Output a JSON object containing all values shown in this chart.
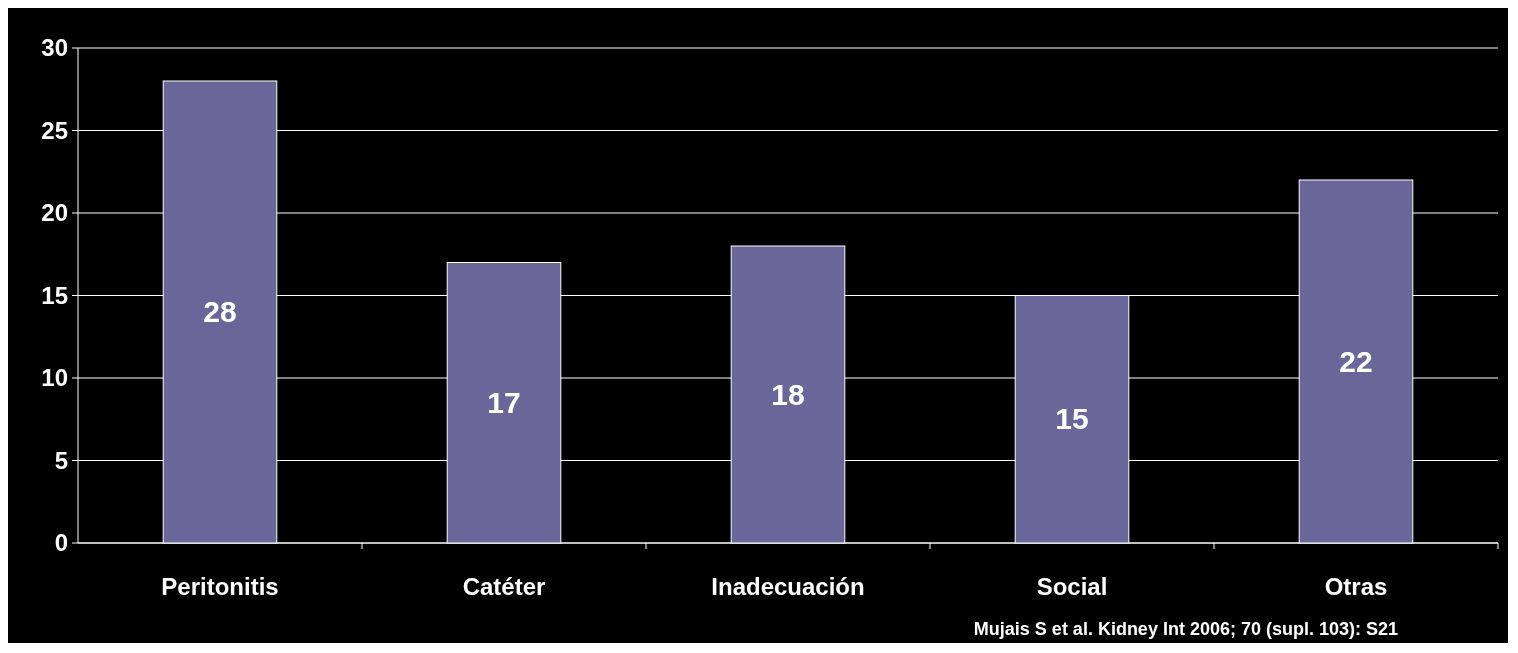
{
  "chart_data": {
    "type": "bar",
    "categories": [
      "Peritonitis",
      "Catéter",
      "Inadecuación",
      "Social",
      "Otras"
    ],
    "values": [
      28,
      17,
      18,
      15,
      22
    ],
    "color": "#6a6699",
    "ylim": [
      0,
      30
    ],
    "yticks": [
      0,
      5,
      10,
      15,
      20,
      25,
      30
    ],
    "grid": "y",
    "data_labels": true,
    "annotations": [
      "Mujais S et al. Kidney Int 2006; 70 (supl. 103): S21"
    ]
  }
}
